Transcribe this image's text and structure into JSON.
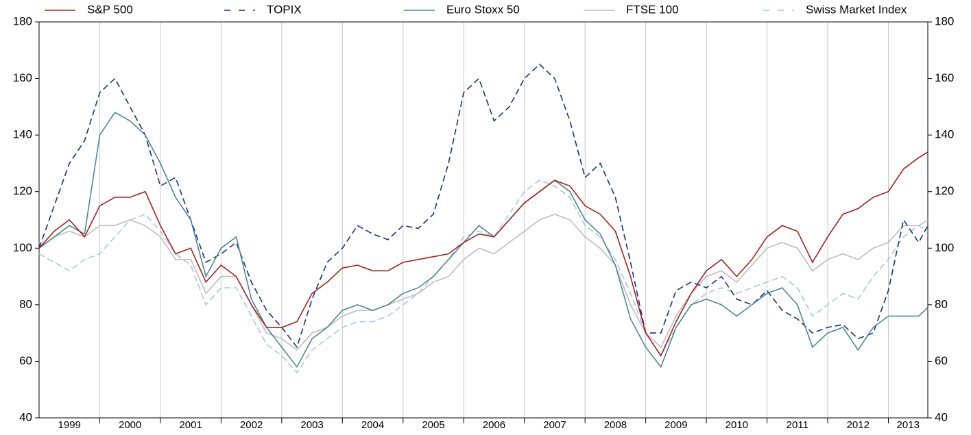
{
  "chart_data": {
    "type": "line",
    "categories": [
      "1999",
      "2000",
      "2001",
      "2002",
      "2003",
      "2004",
      "2005",
      "2006",
      "2007",
      "2008",
      "2009",
      "2010",
      "2011",
      "2012",
      "2013"
    ],
    "x": [
      1999,
      1999.25,
      1999.5,
      1999.75,
      2000,
      2000.25,
      2000.5,
      2000.75,
      2001,
      2001.25,
      2001.5,
      2001.75,
      2002,
      2002.25,
      2002.5,
      2002.75,
      2003,
      2003.25,
      2003.5,
      2003.75,
      2004,
      2004.25,
      2004.5,
      2004.75,
      2005,
      2005.25,
      2005.5,
      2005.75,
      2006,
      2006.25,
      2006.5,
      2006.75,
      2007,
      2007.25,
      2007.5,
      2007.75,
      2008,
      2008.25,
      2008.5,
      2008.75,
      2009,
      2009.25,
      2009.5,
      2009.75,
      2010,
      2010.25,
      2010.5,
      2010.75,
      2011,
      2011.25,
      2011.5,
      2011.75,
      2012,
      2012.25,
      2012.5,
      2012.75,
      2013,
      2013.25,
      2013.5,
      2013.65
    ],
    "xlim": [
      1999,
      2013.65
    ],
    "ylim": [
      40,
      180
    ],
    "yticks": [
      40,
      60,
      80,
      100,
      120,
      140,
      160,
      180
    ],
    "y2lim": [
      40,
      180
    ],
    "y2ticks": [
      40,
      60,
      80,
      100,
      120,
      140,
      160,
      180
    ],
    "grid": true,
    "legend": "top",
    "series": [
      {
        "name": "S&P 500",
        "color": "#a8201a",
        "dashed": false,
        "values": [
          100,
          106,
          110,
          104,
          115,
          118,
          118,
          120,
          108,
          98,
          100,
          88,
          94,
          90,
          80,
          72,
          72,
          74,
          84,
          88,
          93,
          94,
          92,
          92,
          95,
          96,
          97,
          98,
          102,
          105,
          104,
          110,
          116,
          120,
          124,
          122,
          115,
          112,
          106,
          90,
          70,
          62,
          74,
          84,
          92,
          96,
          90,
          96,
          104,
          108,
          106,
          95,
          104,
          112,
          114,
          118,
          120,
          128,
          132,
          134
        ]
      },
      {
        "name": "TOPIX",
        "color": "#1a2f80",
        "dashed": true,
        "values": [
          100,
          115,
          130,
          138,
          155,
          160,
          150,
          140,
          122,
          125,
          110,
          95,
          98,
          102,
          88,
          78,
          72,
          65,
          82,
          95,
          100,
          108,
          105,
          103,
          108,
          107,
          112,
          130,
          155,
          160,
          145,
          150,
          160,
          165,
          160,
          145,
          125,
          130,
          118,
          95,
          70,
          70,
          85,
          88,
          86,
          90,
          82,
          80,
          85,
          78,
          75,
          70,
          72,
          73,
          68,
          70,
          85,
          110,
          102,
          108
        ]
      },
      {
        "name": "Euro Stoxx 50",
        "color": "#4a8896",
        "dashed": false,
        "values": [
          100,
          104,
          108,
          105,
          140,
          148,
          145,
          140,
          130,
          118,
          110,
          90,
          100,
          104,
          82,
          72,
          65,
          58,
          68,
          72,
          78,
          80,
          78,
          80,
          84,
          86,
          90,
          96,
          102,
          108,
          104,
          110,
          116,
          120,
          124,
          120,
          110,
          105,
          94,
          75,
          65,
          58,
          72,
          80,
          82,
          80,
          76,
          80,
          84,
          86,
          80,
          65,
          70,
          72,
          64,
          72,
          76,
          76,
          76,
          79
        ]
      },
      {
        "name": "FTSE 100",
        "color": "#bdbdbd",
        "dashed": false,
        "values": [
          100,
          104,
          106,
          104,
          108,
          108,
          110,
          108,
          104,
          96,
          96,
          84,
          90,
          90,
          80,
          70,
          68,
          64,
          70,
          72,
          76,
          78,
          78,
          80,
          82,
          84,
          88,
          90,
          96,
          100,
          98,
          102,
          106,
          110,
          112,
          110,
          104,
          100,
          94,
          80,
          70,
          65,
          76,
          84,
          90,
          92,
          88,
          94,
          100,
          102,
          100,
          92,
          96,
          98,
          96,
          100,
          102,
          108,
          108,
          110
        ]
      },
      {
        "name": "Swiss Market Index",
        "color": "#a9c4e6",
        "dashed": true,
        "values": [
          98,
          95,
          92,
          96,
          98,
          104,
          110,
          112,
          106,
          98,
          94,
          80,
          86,
          86,
          76,
          66,
          62,
          56,
          64,
          68,
          72,
          74,
          74,
          76,
          80,
          84,
          90,
          96,
          104,
          106,
          104,
          112,
          120,
          124,
          122,
          118,
          108,
          104,
          96,
          84,
          70,
          62,
          72,
          80,
          84,
          86,
          84,
          86,
          88,
          90,
          86,
          76,
          80,
          84,
          82,
          90,
          96,
          104,
          108,
          106
        ]
      }
    ]
  }
}
